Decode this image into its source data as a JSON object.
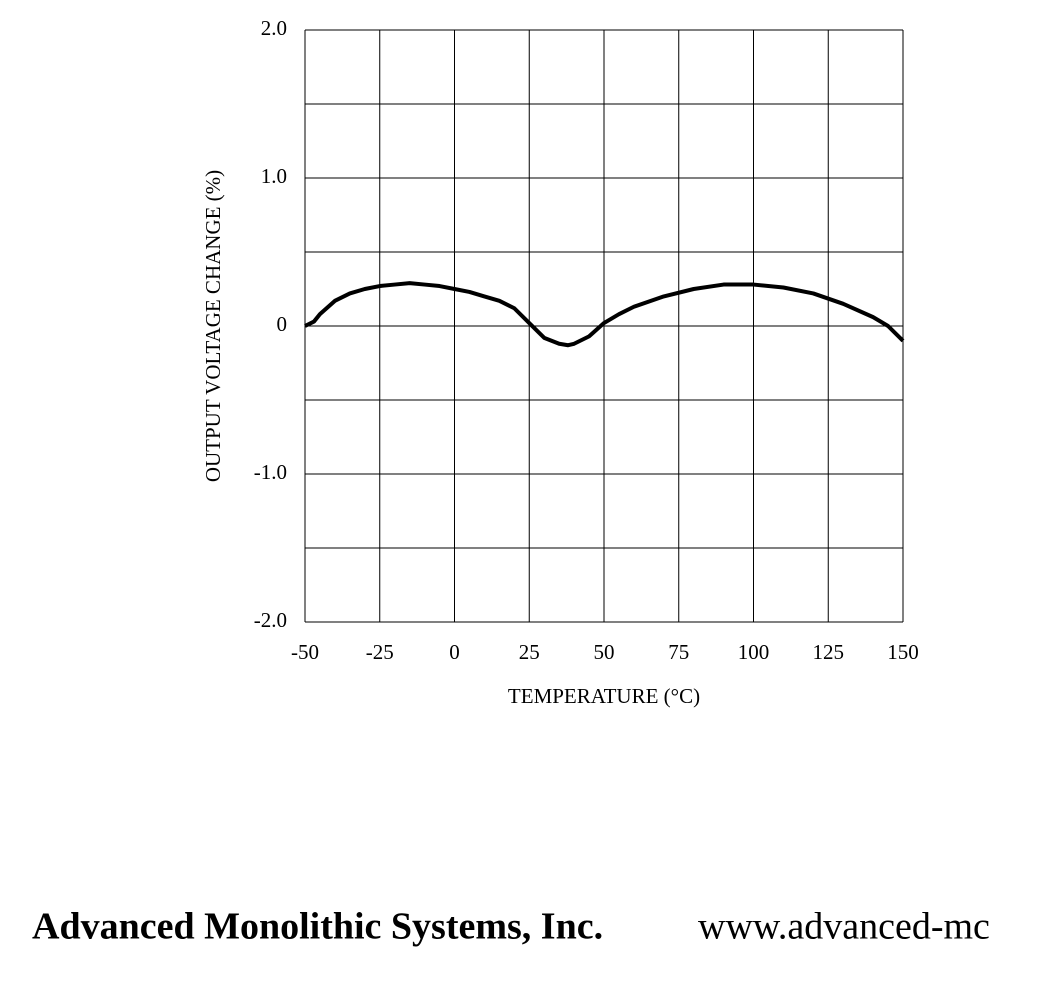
{
  "chart_data": {
    "type": "line",
    "ylabel": "OUTPUT VOLTAGE CHANGE (%)",
    "xlabel": "TEMPERATURE (°C)",
    "x": [
      -50,
      -47,
      -45,
      -40,
      -35,
      -30,
      -25,
      -20,
      -15,
      -10,
      -5,
      0,
      5,
      10,
      15,
      20,
      25,
      30,
      35,
      38,
      40,
      45,
      50,
      55,
      60,
      70,
      80,
      90,
      100,
      110,
      120,
      130,
      140,
      145,
      150
    ],
    "series": [
      {
        "name": "Output voltage change",
        "color": "#000000",
        "values": [
          0,
          0.03,
          0.08,
          0.17,
          0.22,
          0.25,
          0.27,
          0.28,
          0.29,
          0.28,
          0.27,
          0.25,
          0.23,
          0.2,
          0.17,
          0.12,
          0.02,
          -0.08,
          -0.12,
          -0.13,
          -0.12,
          -0.07,
          0.02,
          0.08,
          0.13,
          0.2,
          0.25,
          0.28,
          0.28,
          0.26,
          0.22,
          0.15,
          0.06,
          0.0,
          -0.1
        ]
      }
    ],
    "xlim": [
      -50,
      150
    ],
    "xticks": [
      -50,
      -25,
      0,
      25,
      50,
      75,
      100,
      125,
      150
    ],
    "ylim": [
      -2,
      2
    ],
    "yticks": [
      {
        "value": -2,
        "label": "-2.0"
      },
      {
        "value": -1,
        "label": "-1.0"
      },
      0,
      {
        "value": 1,
        "label": "1.0"
      },
      {
        "value": 2,
        "label": "2.0"
      }
    ],
    "y_minor_grid": [
      -1.5,
      -0.5,
      0.5,
      1.5
    ],
    "grid": true
  },
  "footer": {
    "company": "Advanced Monolithic Systems, Inc.",
    "website": "www.advanced-mc"
  }
}
